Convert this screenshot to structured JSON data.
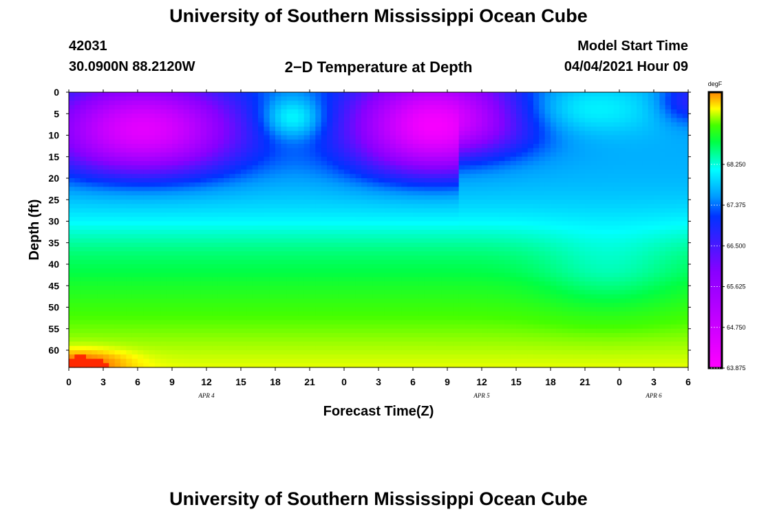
{
  "header": {
    "title_top": "University of Southern Mississippi Ocean Cube",
    "title_bottom": "University of Southern Mississippi Ocean Cube",
    "station_id": "42031",
    "location": "30.0900N  88.2120W",
    "plot_title": "2−D Temperature at Depth",
    "model_label": "Model Start Time",
    "model_time": "04/04/2021 Hour 09"
  },
  "chart_data": {
    "type": "heatmap",
    "title": "2−D Temperature at Depth",
    "xlabel": "Forecast Time(Z)",
    "ylabel": "Depth (ft)",
    "units": "degF",
    "xlim": [
      0,
      54
    ],
    "ylim": [
      0,
      64
    ],
    "x_tick_labels": [
      "0",
      "3",
      "6",
      "9",
      "12",
      "15",
      "18",
      "21",
      "0",
      "3",
      "6",
      "9",
      "12",
      "15",
      "18",
      "21",
      "0",
      "3",
      "6"
    ],
    "y_tick_labels": [
      "0",
      "5",
      "10",
      "15",
      "20",
      "25",
      "30",
      "35",
      "40",
      "45",
      "50",
      "55",
      "60"
    ],
    "date_labels": [
      {
        "label": "APR 4",
        "tick_index": 4
      },
      {
        "label": "APR 5",
        "tick_index": 12
      },
      {
        "label": "APR 6",
        "tick_index": 17
      }
    ],
    "colorbar": {
      "label": "degF",
      "range": [
        63.875,
        69.8
      ],
      "tick_values": [
        63.875,
        64.75,
        65.625,
        66.5,
        67.375,
        68.25
      ],
      "tick_labels": [
        "63.875",
        "64.750",
        "65.625",
        "66.500",
        "67.375",
        "68.250"
      ]
    },
    "features": [
      {
        "kind": "cold_core",
        "t_hours": 4.5,
        "depth_ft": 9,
        "value": 64.6
      },
      {
        "kind": "cold_core",
        "t_hours": 31,
        "depth_ft": 7,
        "value": 64.4
      },
      {
        "kind": "warm_layer",
        "t_hours": 19.5,
        "depth_ft": 6,
        "value": 68.7
      },
      {
        "kind": "warm_surface",
        "t_hours": 44,
        "depth_ft": 4,
        "value": 68.8
      },
      {
        "kind": "bottom_max",
        "t_hours": 1,
        "depth_ft": 63,
        "value": 69.8
      }
    ]
  }
}
